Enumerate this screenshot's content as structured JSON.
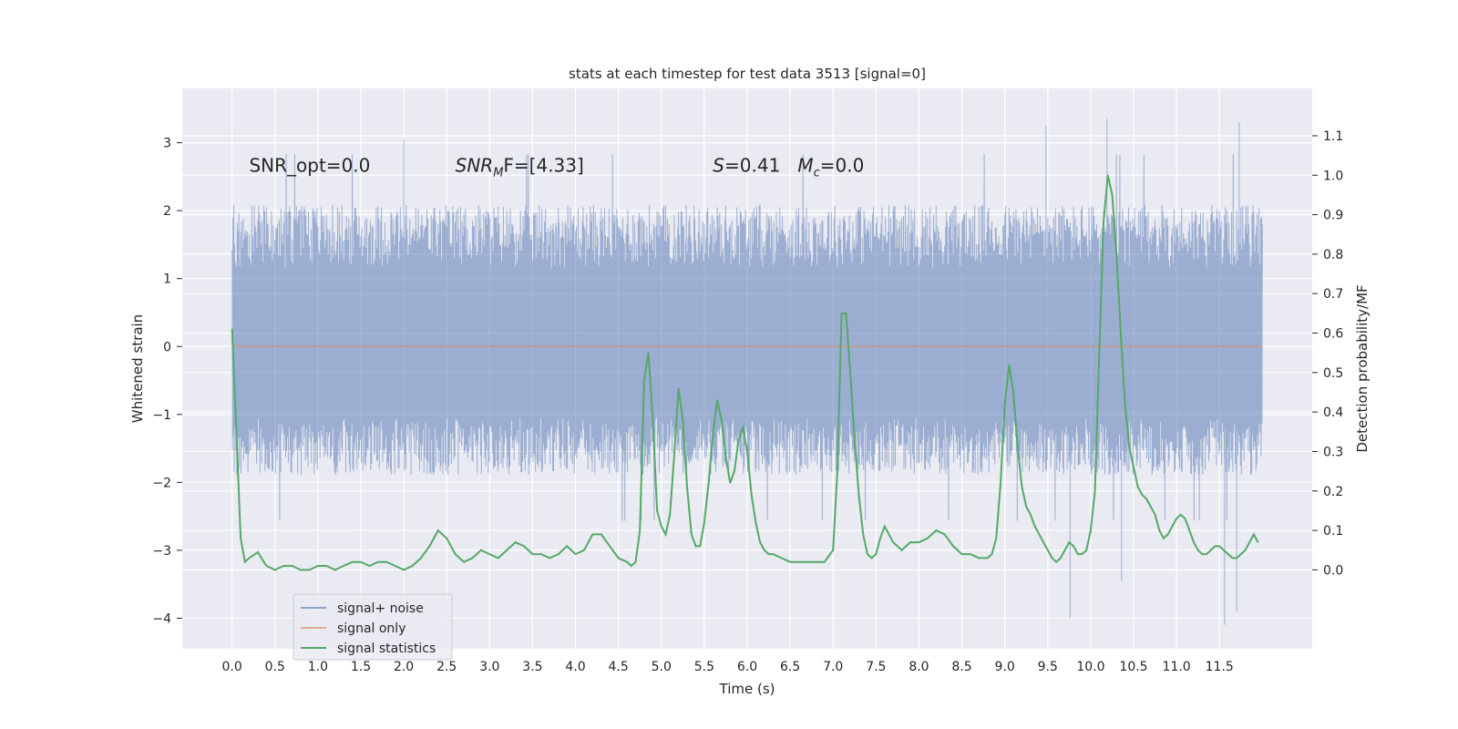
{
  "chart_data": {
    "type": "line",
    "title": "stats at each timestep for test data 3513 [signal=0]",
    "xlabel": "Time (s)",
    "ylabel": "Whitened strain",
    "ylabel_right": "Detection probability/MF",
    "xlim": [
      -0.58,
      12.58
    ],
    "ylim": [
      -4.45,
      3.8
    ],
    "ylim_right": [
      -0.2,
      1.22
    ],
    "x_ticks": [
      "0.0",
      "0.5",
      "1.0",
      "1.5",
      "2.0",
      "2.5",
      "3.0",
      "3.5",
      "4.0",
      "4.5",
      "5.0",
      "5.5",
      "6.0",
      "6.5",
      "7.0",
      "7.5",
      "8.0",
      "8.5",
      "9.0",
      "9.5",
      "10.0",
      "10.5",
      "11.0",
      "11.5"
    ],
    "y_ticks": [
      "3",
      "2",
      "1",
      "0",
      "−1",
      "−2",
      "−3",
      "−4"
    ],
    "y_ticks_right": [
      "1.1",
      "1.0",
      "0.9",
      "0.8",
      "0.7",
      "0.6",
      "0.5",
      "0.4",
      "0.3",
      "0.2",
      "0.1",
      "0.0"
    ],
    "grid": true,
    "legend_position": "lower-left",
    "annotations": [
      {
        "label": "SNR_opt=0.0",
        "x": 0.2,
        "y": 2.6
      },
      {
        "label": "SNR_MF=[4.33]",
        "x": 2.6,
        "y": 2.6
      },
      {
        "label": "S=0.41   M_c=0.0",
        "x": 5.6,
        "y": 2.6
      }
    ],
    "annotation_text": {
      "a1": "SNR_opt=0.0",
      "a2_pre": "SNR",
      "a2_sub": "M",
      "a2_post": "F=[4.33]",
      "a3_s": "S",
      "a3_mid": "=0.41   ",
      "a3_m": "M",
      "a3_sub": "c",
      "a3_post": "=0.0"
    },
    "series": [
      {
        "name": "signal+ noise",
        "color": "#4c72b0",
        "axis": "left",
        "kind": "noise",
        "x_range": [
          0,
          12.0
        ],
        "typical_range": [
          -1.9,
          2.1
        ],
        "extremes": [
          [
            10.19,
            3.35
          ],
          [
            11.73,
            3.3
          ],
          [
            9.48,
            3.25
          ],
          [
            11.56,
            -4.1
          ],
          [
            9.76,
            -4.0
          ],
          [
            10.36,
            -3.45
          ],
          [
            11.7,
            -3.9
          ],
          [
            2.0,
            3.05
          ]
        ]
      },
      {
        "name": "signal only",
        "color": "#dd8452",
        "axis": "left",
        "x": [
          0,
          12.0
        ],
        "y": [
          0,
          0
        ]
      },
      {
        "name": "signal statistics",
        "color": "#55a868",
        "axis": "right",
        "x": [
          0.0,
          0.05,
          0.1,
          0.15,
          0.2,
          0.3,
          0.4,
          0.5,
          0.6,
          0.7,
          0.8,
          0.9,
          1.0,
          1.1,
          1.2,
          1.3,
          1.4,
          1.5,
          1.6,
          1.7,
          1.8,
          1.9,
          2.0,
          2.1,
          2.2,
          2.3,
          2.4,
          2.5,
          2.6,
          2.7,
          2.8,
          2.9,
          3.0,
          3.1,
          3.2,
          3.3,
          3.4,
          3.5,
          3.6,
          3.7,
          3.8,
          3.9,
          4.0,
          4.1,
          4.2,
          4.3,
          4.4,
          4.5,
          4.6,
          4.65,
          4.7,
          4.75,
          4.8,
          4.85,
          4.9,
          4.95,
          5.0,
          5.05,
          5.1,
          5.15,
          5.2,
          5.25,
          5.3,
          5.35,
          5.4,
          5.45,
          5.5,
          5.55,
          5.6,
          5.65,
          5.7,
          5.75,
          5.8,
          5.85,
          5.9,
          5.95,
          6.0,
          6.05,
          6.1,
          6.15,
          6.2,
          6.25,
          6.3,
          6.4,
          6.5,
          6.6,
          6.7,
          6.8,
          6.9,
          7.0,
          7.05,
          7.1,
          7.15,
          7.2,
          7.25,
          7.3,
          7.35,
          7.4,
          7.45,
          7.5,
          7.55,
          7.6,
          7.65,
          7.7,
          7.75,
          7.8,
          7.85,
          7.9,
          8.0,
          8.1,
          8.2,
          8.3,
          8.4,
          8.5,
          8.6,
          8.7,
          8.8,
          8.85,
          8.9,
          8.95,
          9.0,
          9.05,
          9.1,
          9.15,
          9.2,
          9.25,
          9.3,
          9.35,
          9.4,
          9.45,
          9.5,
          9.55,
          9.6,
          9.65,
          9.7,
          9.75,
          9.8,
          9.85,
          9.9,
          9.95,
          10.0,
          10.05,
          10.1,
          10.15,
          10.2,
          10.25,
          10.3,
          10.35,
          10.4,
          10.45,
          10.5,
          10.55,
          10.6,
          10.65,
          10.7,
          10.75,
          10.8,
          10.85,
          10.9,
          10.95,
          11.0,
          11.05,
          11.1,
          11.15,
          11.2,
          11.25,
          11.3,
          11.35,
          11.4,
          11.45,
          11.5,
          11.55,
          11.6,
          11.65,
          11.7,
          11.75,
          11.8,
          11.85,
          11.9,
          11.95
        ],
        "y": [
          0.61,
          0.35,
          0.08,
          0.02,
          0.03,
          0.045,
          0.01,
          0.0,
          0.01,
          0.01,
          0.0,
          0.0,
          0.01,
          0.01,
          0.0,
          0.01,
          0.02,
          0.02,
          0.01,
          0.02,
          0.02,
          0.01,
          0.0,
          0.01,
          0.03,
          0.06,
          0.1,
          0.08,
          0.04,
          0.02,
          0.03,
          0.05,
          0.04,
          0.03,
          0.05,
          0.07,
          0.06,
          0.04,
          0.04,
          0.03,
          0.04,
          0.06,
          0.04,
          0.05,
          0.09,
          0.09,
          0.06,
          0.03,
          0.02,
          0.01,
          0.02,
          0.1,
          0.48,
          0.55,
          0.38,
          0.15,
          0.11,
          0.09,
          0.14,
          0.29,
          0.46,
          0.38,
          0.21,
          0.09,
          0.06,
          0.06,
          0.12,
          0.22,
          0.34,
          0.43,
          0.38,
          0.29,
          0.22,
          0.25,
          0.33,
          0.36,
          0.3,
          0.19,
          0.12,
          0.07,
          0.05,
          0.04,
          0.04,
          0.03,
          0.02,
          0.02,
          0.02,
          0.02,
          0.02,
          0.05,
          0.25,
          0.65,
          0.65,
          0.5,
          0.33,
          0.19,
          0.09,
          0.04,
          0.03,
          0.04,
          0.08,
          0.11,
          0.09,
          0.07,
          0.06,
          0.05,
          0.06,
          0.07,
          0.07,
          0.08,
          0.1,
          0.09,
          0.06,
          0.04,
          0.04,
          0.03,
          0.03,
          0.04,
          0.08,
          0.22,
          0.42,
          0.52,
          0.45,
          0.31,
          0.21,
          0.16,
          0.14,
          0.11,
          0.09,
          0.07,
          0.05,
          0.03,
          0.02,
          0.03,
          0.05,
          0.07,
          0.06,
          0.04,
          0.04,
          0.05,
          0.1,
          0.2,
          0.55,
          0.88,
          1.0,
          0.95,
          0.8,
          0.6,
          0.42,
          0.31,
          0.26,
          0.21,
          0.19,
          0.18,
          0.16,
          0.14,
          0.1,
          0.08,
          0.09,
          0.11,
          0.13,
          0.14,
          0.13,
          0.1,
          0.07,
          0.05,
          0.04,
          0.04,
          0.05,
          0.06,
          0.06,
          0.05,
          0.04,
          0.03,
          0.03,
          0.04,
          0.05,
          0.07,
          0.09,
          0.07
        ]
      }
    ]
  }
}
